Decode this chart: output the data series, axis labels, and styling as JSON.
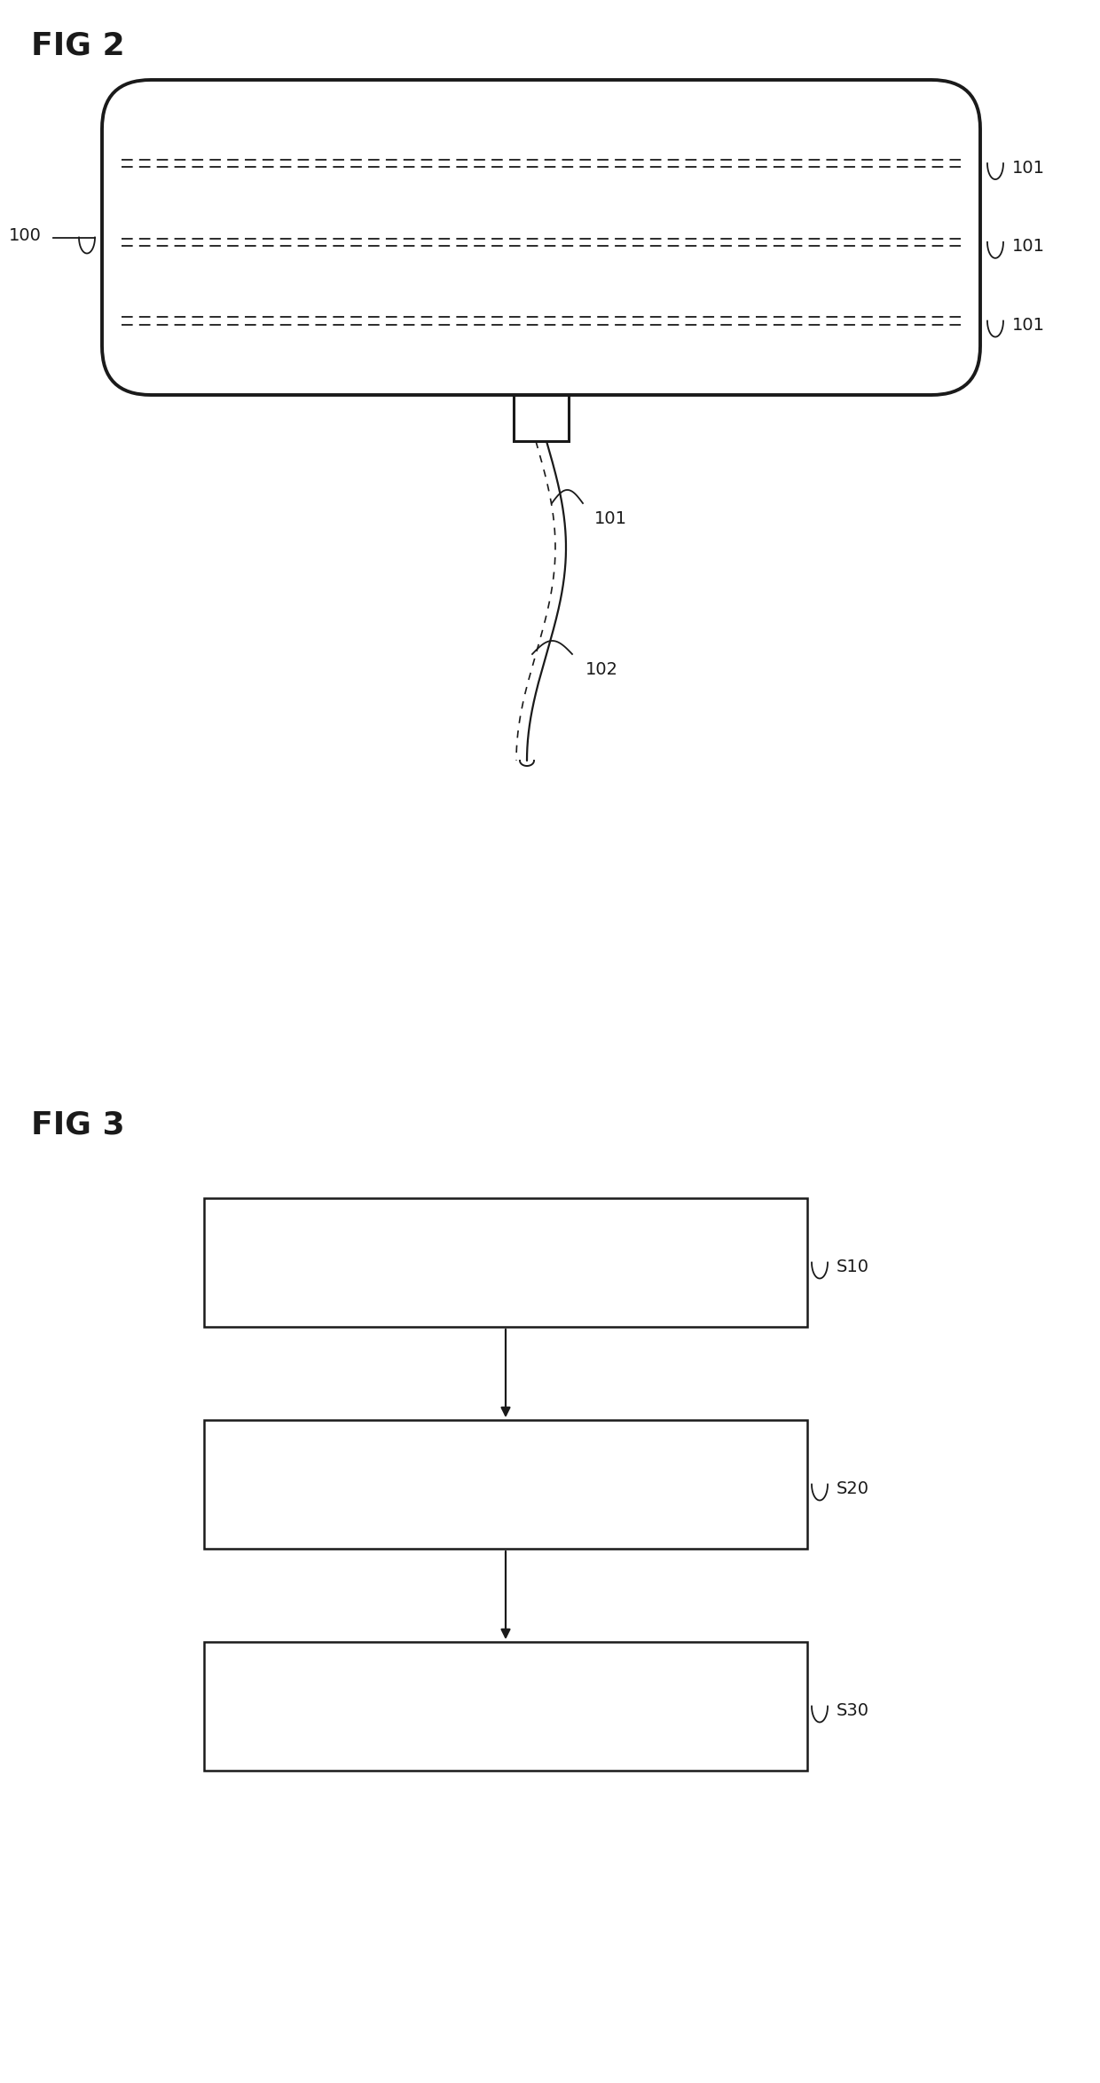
{
  "fig_width": 12.4,
  "fig_height": 23.47,
  "bg_color": "#ffffff",
  "fig2_title": "FIG 2",
  "fig3_title": "FIG 3",
  "label_100": "100",
  "label_101": "101",
  "label_102": "102",
  "label_S10": "S10",
  "label_S20": "S20",
  "label_S30": "S30",
  "line_color": "#1a1a1a",
  "title_fontsize": 26,
  "label_fontsize": 14
}
